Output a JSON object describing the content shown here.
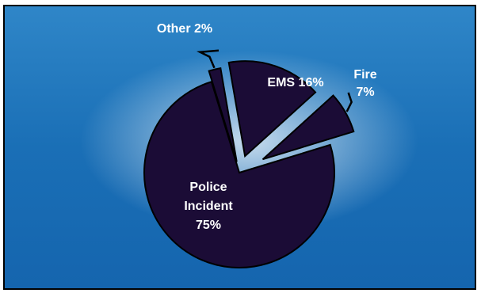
{
  "chart_data": {
    "type": "pie",
    "exploded": true,
    "slices": [
      {
        "label": "Police Incident",
        "value": 75,
        "display": [
          "Police",
          "Incident",
          "75%"
        ]
      },
      {
        "label": "Other",
        "value": 2,
        "display": [
          "Other 2%"
        ]
      },
      {
        "label": "EMS",
        "value": 16,
        "display": [
          "EMS 16%"
        ]
      },
      {
        "label": "Fire",
        "value": 7,
        "display": [
          "Fire",
          "7%"
        ]
      }
    ]
  },
  "colors": {
    "slice_fill": "#1b0c36",
    "slice_stroke": "#000000",
    "label_inside": "#ffffff",
    "label_outside": "#ffffff",
    "label_other": "#ffffff",
    "background_dark": "#1565ae",
    "background_light": "#ffffff"
  }
}
